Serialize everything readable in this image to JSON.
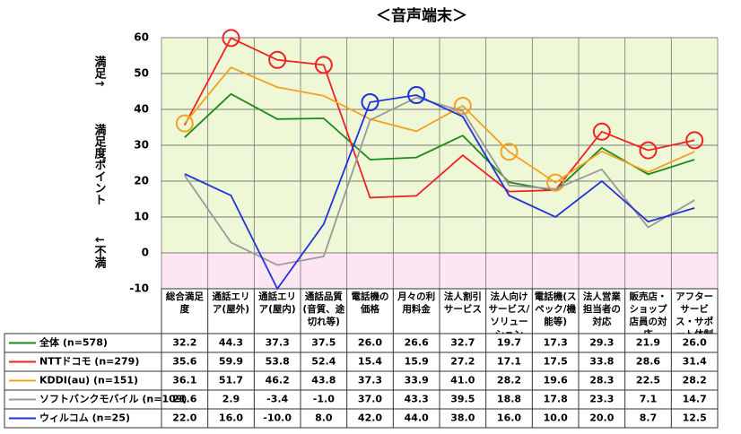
{
  "chart_data": {
    "type": "line",
    "title": "＜音声端末＞",
    "ylabel_top": "満足↑",
    "ylabel": "満足度ポイント",
    "ylabel_bottom": "↓不満",
    "categories": [
      "総合満足度",
      "通話エリア(屋外)",
      "通話エリア(屋内)",
      "通話品質(音質、途切れ等)",
      "電話機の価格",
      "月々の利用料金",
      "法人割引サービス",
      "法人向けサービス/ソリューション",
      "電話機(スペック/機能等)",
      "法人営業担当者の対応",
      "販売店・ショップ店員の対応",
      "アフターサービス・サポート体制"
    ],
    "series": [
      {
        "name": "全体 (n=578)",
        "color": "#1a8a1a",
        "values": [
          32.2,
          44.3,
          37.3,
          37.5,
          26.0,
          26.6,
          32.7,
          19.7,
          17.3,
          29.3,
          21.9,
          26.0
        ],
        "value_labels": [
          "32.2",
          "44.3",
          "37.3",
          "37.5",
          "26.0",
          "26.6",
          "32.7",
          "19.7",
          "17.3",
          "29.3",
          "21.9",
          "26.0"
        ],
        "highlight": []
      },
      {
        "name": "NTTドコモ (n=279)",
        "color": "#ee2222",
        "values": [
          35.6,
          59.9,
          53.8,
          52.4,
          15.4,
          15.9,
          27.2,
          17.1,
          17.5,
          33.8,
          28.6,
          31.4
        ],
        "value_labels": [
          "35.6",
          "59.9",
          "53.8",
          "52.4",
          "15.4",
          "15.9",
          "27.2",
          "17.1",
          "17.5",
          "33.8",
          "28.6",
          "31.4"
        ],
        "highlight": [
          1,
          2,
          3,
          9,
          10,
          11
        ]
      },
      {
        "name": "KDDI(au) (n=151)",
        "color": "#f5a020",
        "values": [
          36.1,
          51.7,
          46.2,
          43.8,
          37.3,
          33.9,
          41.0,
          28.2,
          19.6,
          28.3,
          22.5,
          28.2
        ],
        "value_labels": [
          "36.1",
          "51.7",
          "46.2",
          "43.8",
          "37.3",
          "33.9",
          "41.0",
          "28.2",
          "19.6",
          "28.3",
          "22.5",
          "28.2"
        ],
        "highlight": [
          0,
          6,
          7,
          8
        ]
      },
      {
        "name": "ソフトバンクモバイル (n=109)",
        "color": "#999999",
        "values": [
          21.6,
          2.9,
          -3.4,
          -1.0,
          37.0,
          43.3,
          39.5,
          18.8,
          17.8,
          23.3,
          7.1,
          14.7
        ],
        "value_labels": [
          "21.6",
          "2.9",
          "-3.4",
          "-1.0",
          "37.0",
          "43.3",
          "39.5",
          "18.8",
          "17.8",
          "23.3",
          "7.1",
          "14.7"
        ],
        "highlight": []
      },
      {
        "name": "ウィルコム (n=25)",
        "color": "#2233dd",
        "values": [
          22.0,
          16.0,
          -10.0,
          8.0,
          42.0,
          44.0,
          38.0,
          16.0,
          10.0,
          20.0,
          8.7,
          12.5
        ],
        "value_labels": [
          "22.0",
          "16.0",
          "-10.0",
          "8.0",
          "42.0",
          "44.0",
          "38.0",
          "16.0",
          "10.0",
          "20.0",
          "8.7",
          "12.5"
        ],
        "highlight": [
          4,
          5
        ]
      }
    ],
    "ylim": [
      -10,
      60
    ],
    "yticks": [
      -10,
      0,
      10,
      20,
      30,
      40,
      50,
      60
    ],
    "grid": true
  }
}
